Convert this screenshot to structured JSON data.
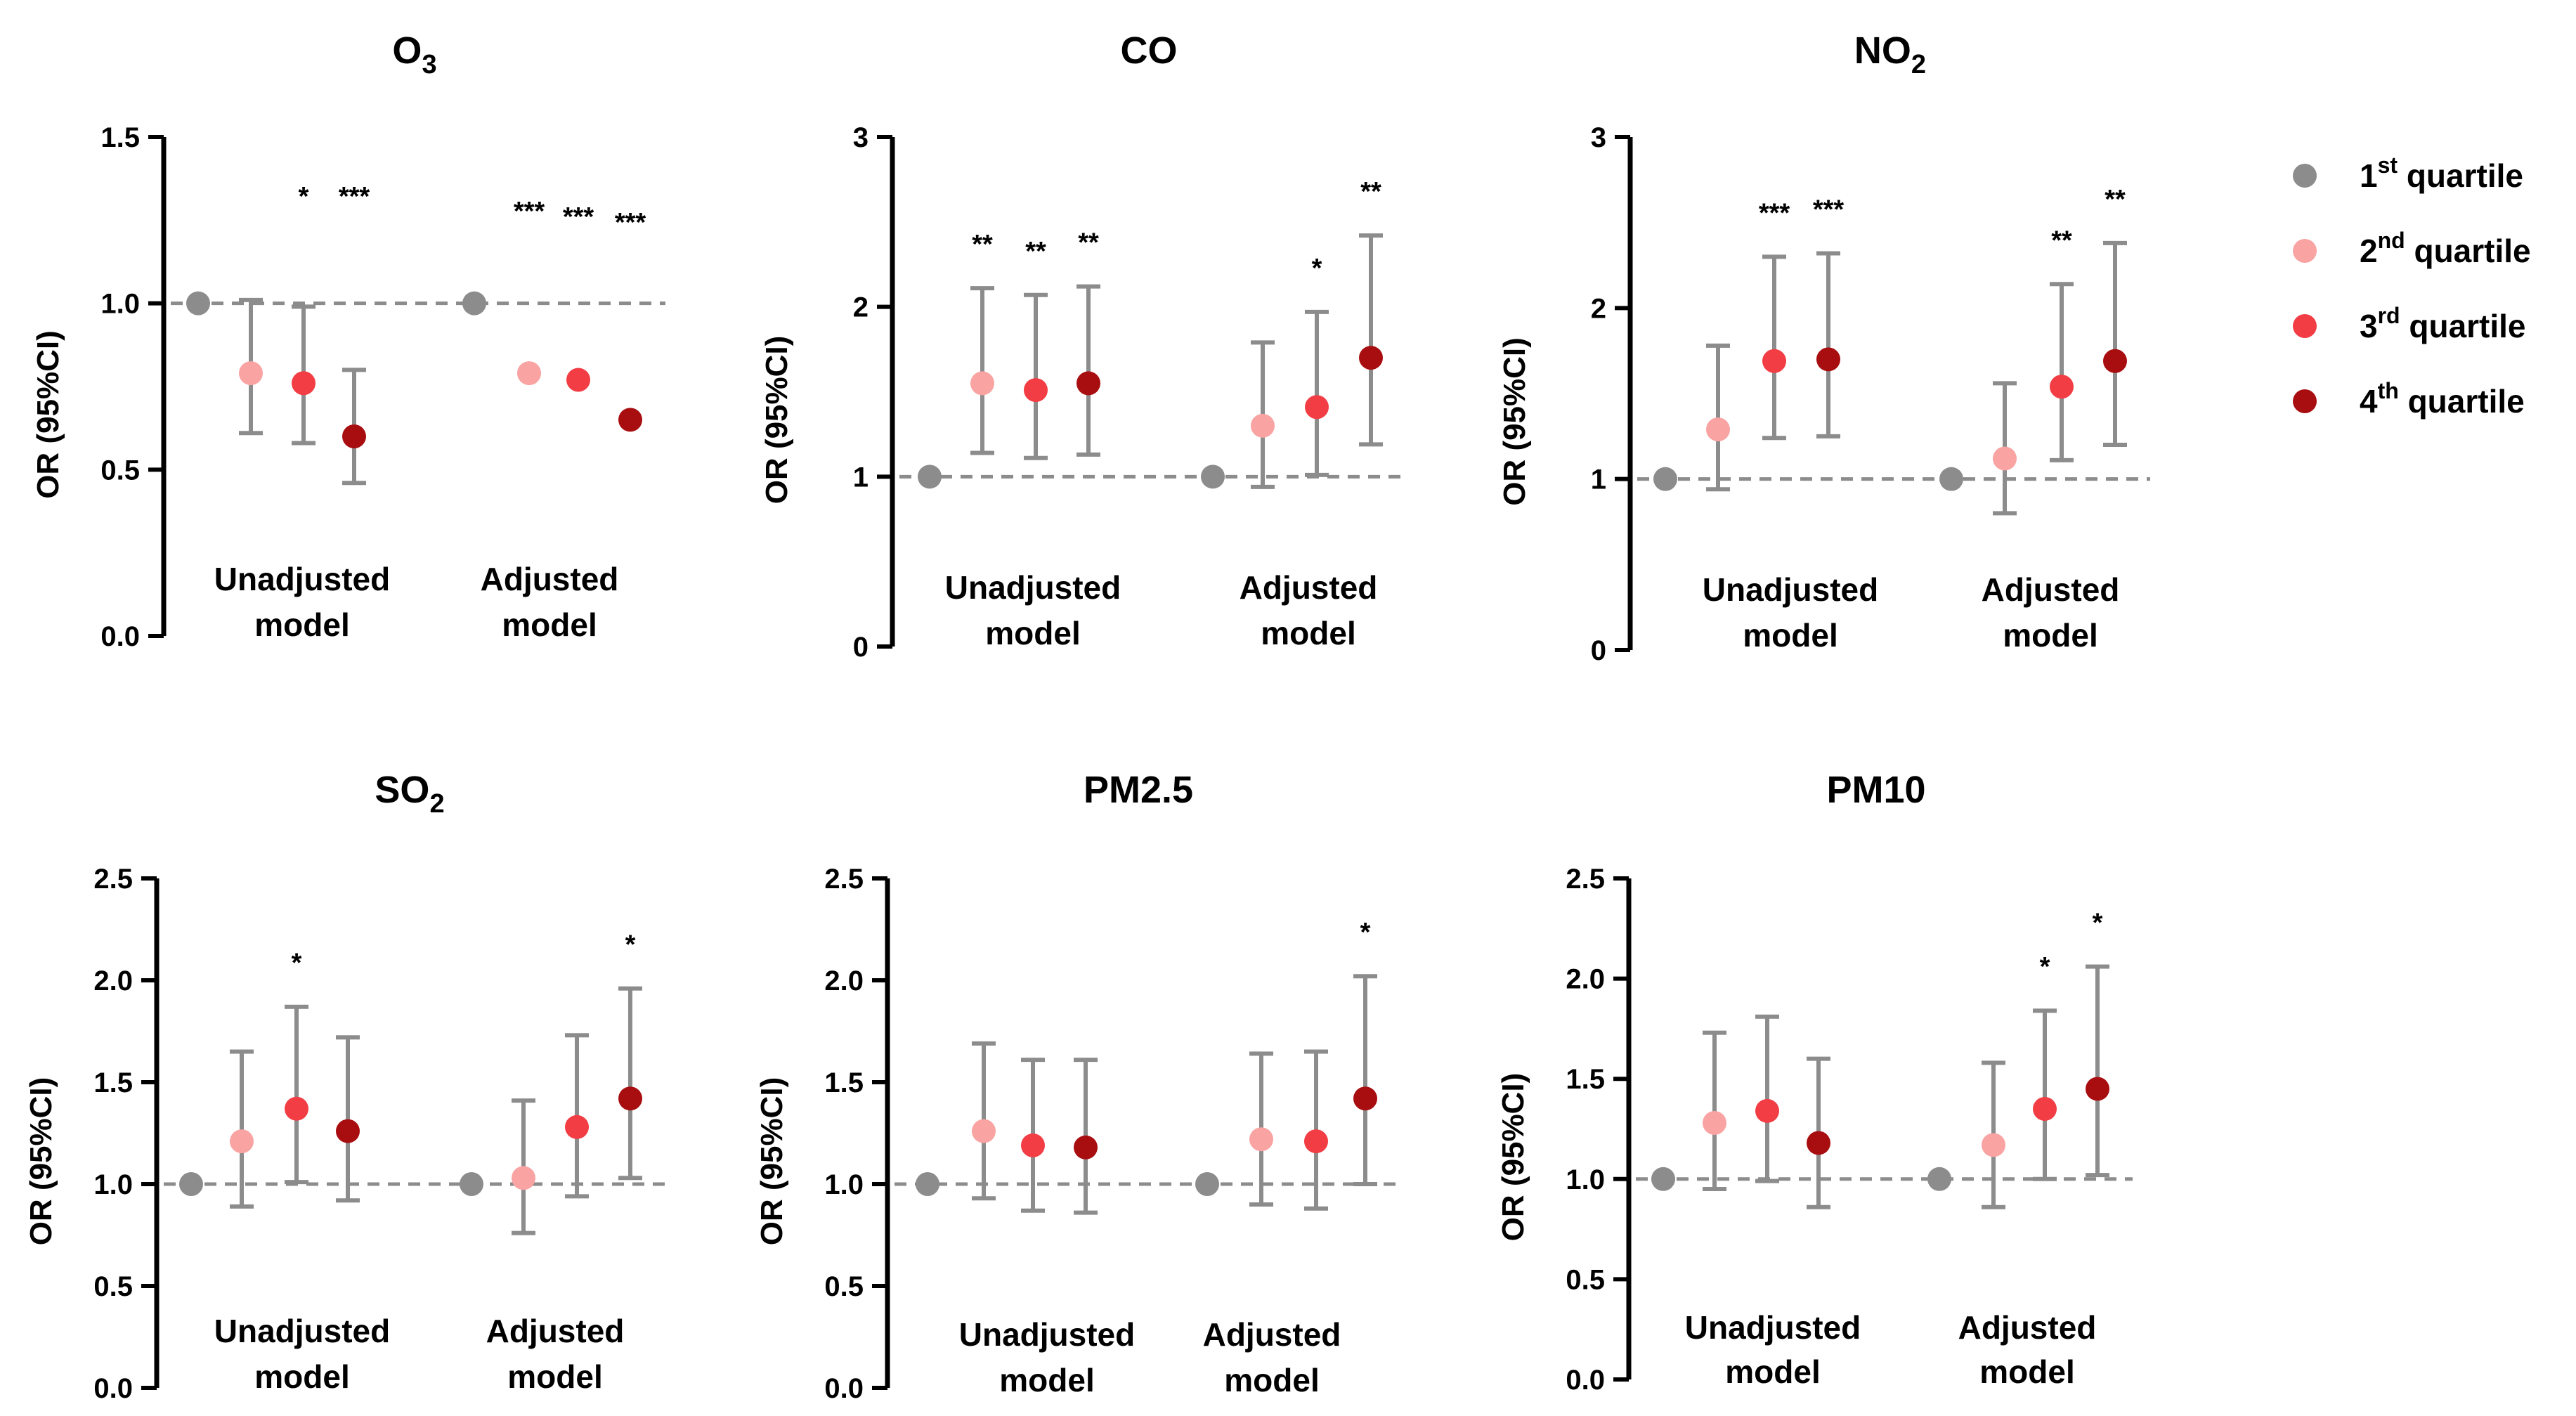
{
  "legend": {
    "items": [
      {
        "order": "1",
        "sup": "st",
        "label": " quartile",
        "color": "#8c8c8c"
      },
      {
        "order": "2",
        "sup": "nd",
        "label": " quartile",
        "color": "#f9a3a3"
      },
      {
        "order": "3",
        "sup": "rd",
        "label": " quartile",
        "color": "#f23d44"
      },
      {
        "order": "4",
        "sup": "th",
        "label": " quartile",
        "color": "#a80d10"
      }
    ]
  },
  "chart_data": [
    {
      "type": "scatter",
      "title": "O",
      "title_sub": "3",
      "ylabel": "OR (95%CI)",
      "ylim": [
        0,
        1.5
      ],
      "yticks": [
        "0.0",
        "0.5",
        "1.0",
        "1.5"
      ],
      "ytick_values": [
        0,
        0.5,
        1.0,
        1.5
      ],
      "reference_line": 1.0,
      "groups": [
        {
          "label": [
            "Unadjusted",
            "model"
          ],
          "points": [
            {
              "q": 1,
              "or": 1.0,
              "lo": null,
              "hi": null,
              "sig": ""
            },
            {
              "q": 2,
              "or": 0.79,
              "lo": 0.61,
              "hi": 1.01,
              "sig": ""
            },
            {
              "q": 3,
              "or": 0.76,
              "lo": 0.58,
              "hi": 0.99,
              "sig": "*"
            },
            {
              "q": 4,
              "or": 0.6,
              "lo": 0.46,
              "hi": 0.8,
              "sig": "***"
            }
          ]
        },
        {
          "label": [
            "Adjusted",
            "model"
          ],
          "points": [
            {
              "q": 1,
              "or": 1.0,
              "lo": null,
              "hi": null,
              "sig": ""
            },
            {
              "q": 2,
              "or": 0.79,
              "lo": null,
              "hi": null,
              "sig": "***"
            },
            {
              "q": 3,
              "or": 0.77,
              "lo": null,
              "hi": null,
              "sig": "***"
            },
            {
              "q": 4,
              "or": 0.65,
              "lo": null,
              "hi": null,
              "sig": "***"
            }
          ]
        }
      ]
    },
    {
      "type": "scatter",
      "title": "CO",
      "title_sub": "",
      "ylabel": "OR (95%CI)",
      "ylim": [
        0,
        3
      ],
      "yticks": [
        "0",
        "1",
        "2",
        "3"
      ],
      "ytick_values": [
        0,
        1,
        2,
        3
      ],
      "reference_line": 1.0,
      "groups": [
        {
          "label": [
            "Unadjusted",
            "model"
          ],
          "points": [
            {
              "q": 1,
              "or": 1.0,
              "lo": null,
              "hi": null,
              "sig": ""
            },
            {
              "q": 2,
              "or": 1.55,
              "lo": 1.14,
              "hi": 2.11,
              "sig": "**"
            },
            {
              "q": 3,
              "or": 1.51,
              "lo": 1.11,
              "hi": 2.07,
              "sig": "**"
            },
            {
              "q": 4,
              "or": 1.55,
              "lo": 1.13,
              "hi": 2.12,
              "sig": "**"
            }
          ]
        },
        {
          "label": [
            "Adjusted",
            "model"
          ],
          "points": [
            {
              "q": 1,
              "or": 1.0,
              "lo": null,
              "hi": null,
              "sig": ""
            },
            {
              "q": 2,
              "or": 1.3,
              "lo": 0.94,
              "hi": 1.79,
              "sig": ""
            },
            {
              "q": 3,
              "or": 1.41,
              "lo": 1.01,
              "hi": 1.97,
              "sig": "*"
            },
            {
              "q": 4,
              "or": 1.7,
              "lo": 1.19,
              "hi": 2.42,
              "sig": "**"
            }
          ]
        }
      ]
    },
    {
      "type": "scatter",
      "title": "NO",
      "title_sub": "2",
      "ylabel": "OR (95%CI)",
      "ylim": [
        0,
        3
      ],
      "yticks": [
        "0",
        "1",
        "2",
        "3"
      ],
      "ytick_values": [
        0,
        1,
        2,
        3
      ],
      "reference_line": 1.0,
      "groups": [
        {
          "label": [
            "Unadjusted",
            "model"
          ],
          "points": [
            {
              "q": 1,
              "or": 1.0,
              "lo": null,
              "hi": null,
              "sig": ""
            },
            {
              "q": 2,
              "or": 1.29,
              "lo": 0.94,
              "hi": 1.78,
              "sig": ""
            },
            {
              "q": 3,
              "or": 1.69,
              "lo": 1.24,
              "hi": 2.3,
              "sig": "***"
            },
            {
              "q": 4,
              "or": 1.7,
              "lo": 1.25,
              "hi": 2.32,
              "sig": "***"
            }
          ]
        },
        {
          "label": [
            "Adjusted",
            "model"
          ],
          "points": [
            {
              "q": 1,
              "or": 1.0,
              "lo": null,
              "hi": null,
              "sig": ""
            },
            {
              "q": 2,
              "or": 1.12,
              "lo": 0.8,
              "hi": 1.56,
              "sig": ""
            },
            {
              "q": 3,
              "or": 1.54,
              "lo": 1.11,
              "hi": 2.14,
              "sig": "**"
            },
            {
              "q": 4,
              "or": 1.69,
              "lo": 1.2,
              "hi": 2.38,
              "sig": "**"
            }
          ]
        }
      ]
    },
    {
      "type": "scatter",
      "title": "SO",
      "title_sub": "2",
      "ylabel": "OR (95%CI)",
      "ylim": [
        0,
        2.5
      ],
      "yticks": [
        "0.0",
        "0.5",
        "1.0",
        "1.5",
        "2.0",
        "2.5"
      ],
      "ytick_values": [
        0,
        0.5,
        1.0,
        1.5,
        2.0,
        2.5
      ],
      "reference_line": 1.0,
      "groups": [
        {
          "label": [
            "Unadjusted",
            "model"
          ],
          "points": [
            {
              "q": 1,
              "or": 1.0,
              "lo": null,
              "hi": null,
              "sig": ""
            },
            {
              "q": 2,
              "or": 1.21,
              "lo": 0.89,
              "hi": 1.65,
              "sig": ""
            },
            {
              "q": 3,
              "or": 1.37,
              "lo": 1.01,
              "hi": 1.87,
              "sig": "*"
            },
            {
              "q": 4,
              "or": 1.26,
              "lo": 0.92,
              "hi": 1.72,
              "sig": ""
            }
          ]
        },
        {
          "label": [
            "Adjusted",
            "model"
          ],
          "points": [
            {
              "q": 1,
              "or": 1.0,
              "lo": null,
              "hi": null,
              "sig": ""
            },
            {
              "q": 2,
              "or": 1.03,
              "lo": 0.76,
              "hi": 1.41,
              "sig": ""
            },
            {
              "q": 3,
              "or": 1.28,
              "lo": 0.94,
              "hi": 1.73,
              "sig": ""
            },
            {
              "q": 4,
              "or": 1.42,
              "lo": 1.03,
              "hi": 1.96,
              "sig": "*"
            }
          ]
        }
      ]
    },
    {
      "type": "scatter",
      "title": "PM2.5",
      "title_sub": "",
      "ylabel": "OR (95%CI)",
      "ylim": [
        0,
        2.5
      ],
      "yticks": [
        "0.0",
        "0.5",
        "1.0",
        "1.5",
        "2.0",
        "2.5"
      ],
      "ytick_values": [
        0,
        0.5,
        1.0,
        1.5,
        2.0,
        2.5
      ],
      "reference_line": 1.0,
      "groups": [
        {
          "label": [
            "Unadjusted",
            "model"
          ],
          "points": [
            {
              "q": 1,
              "or": 1.0,
              "lo": null,
              "hi": null,
              "sig": ""
            },
            {
              "q": 2,
              "or": 1.26,
              "lo": 0.93,
              "hi": 1.69,
              "sig": ""
            },
            {
              "q": 3,
              "or": 1.19,
              "lo": 0.87,
              "hi": 1.61,
              "sig": ""
            },
            {
              "q": 4,
              "or": 1.18,
              "lo": 0.86,
              "hi": 1.61,
              "sig": ""
            }
          ]
        },
        {
          "label": [
            "Adjusted",
            "model"
          ],
          "points": [
            {
              "q": 1,
              "or": 1.0,
              "lo": null,
              "hi": null,
              "sig": ""
            },
            {
              "q": 2,
              "or": 1.22,
              "lo": 0.9,
              "hi": 1.64,
              "sig": ""
            },
            {
              "q": 3,
              "or": 1.21,
              "lo": 0.88,
              "hi": 1.65,
              "sig": ""
            },
            {
              "q": 4,
              "or": 1.42,
              "lo": 1.0,
              "hi": 2.02,
              "sig": "*"
            }
          ]
        }
      ]
    },
    {
      "type": "scatter",
      "title": "PM10",
      "title_sub": "",
      "ylabel": "OR (95%CI)",
      "ylim": [
        0,
        2.5
      ],
      "yticks": [
        "0.0",
        "0.5",
        "1.0",
        "1.5",
        "2.0",
        "2.5"
      ],
      "ytick_values": [
        0,
        0.5,
        1.0,
        1.5,
        2.0,
        2.5
      ],
      "reference_line": 1.0,
      "groups": [
        {
          "label": [
            "Unadjusted",
            "model"
          ],
          "points": [
            {
              "q": 1,
              "or": 1.0,
              "lo": null,
              "hi": null,
              "sig": ""
            },
            {
              "q": 2,
              "or": 1.28,
              "lo": 0.95,
              "hi": 1.73,
              "sig": ""
            },
            {
              "q": 3,
              "or": 1.34,
              "lo": 0.99,
              "hi": 1.81,
              "sig": ""
            },
            {
              "q": 4,
              "or": 1.18,
              "lo": 0.86,
              "hi": 1.6,
              "sig": ""
            }
          ]
        },
        {
          "label": [
            "Adjusted",
            "model"
          ],
          "points": [
            {
              "q": 1,
              "or": 1.0,
              "lo": null,
              "hi": null,
              "sig": ""
            },
            {
              "q": 2,
              "or": 1.17,
              "lo": 0.86,
              "hi": 1.58,
              "sig": ""
            },
            {
              "q": 3,
              "or": 1.35,
              "lo": 1.0,
              "hi": 1.84,
              "sig": "*"
            },
            {
              "q": 4,
              "or": 1.45,
              "lo": 1.02,
              "hi": 2.06,
              "sig": "*"
            }
          ]
        }
      ]
    }
  ]
}
